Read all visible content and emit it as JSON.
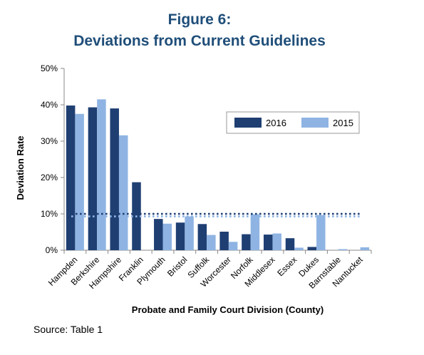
{
  "page": {
    "title_line1": "Figure 6:",
    "title_line2": "Deviations from Current Guidelines",
    "source": "Source:  Table 1"
  },
  "chart_data": {
    "type": "bar",
    "xlabel": "Probate and Family Court Division (County)",
    "ylabel": "Deviation Rate",
    "ylim": [
      0,
      50
    ],
    "yticks": [
      0,
      10,
      20,
      30,
      40,
      50
    ],
    "ytick_labels": [
      "0%",
      "10%",
      "20%",
      "30%",
      "40%",
      "50%"
    ],
    "grid": false,
    "legend_position": "upper-right",
    "categories": [
      "Hampden",
      "Berkshire",
      "Hampshire",
      "Franklin",
      "Plymouth",
      "Bristol",
      "Suffolk",
      "Worcester",
      "Norfolk",
      "Middlesex",
      "Essex",
      "Dukes",
      "Barnstable",
      "Nantucket"
    ],
    "series": [
      {
        "name": "2016",
        "color": "#1f3f73",
        "values": [
          39.8,
          39.3,
          39.0,
          18.7,
          8.6,
          7.6,
          7.2,
          5.1,
          4.4,
          4.3,
          3.3,
          0.9,
          0.0,
          0.0
        ]
      },
      {
        "name": "2015",
        "color": "#8fb4e3",
        "values": [
          37.5,
          41.5,
          31.6,
          0.0,
          7.3,
          9.3,
          4.2,
          2.3,
          9.9,
          4.6,
          0.7,
          9.7,
          0.3,
          0.8
        ]
      }
    ],
    "reference_lines": [
      {
        "value": 10,
        "color": "#1f3f73",
        "style": "dotted"
      },
      {
        "value": 9.3,
        "color": "#8fb4e3",
        "style": "dotted"
      }
    ]
  }
}
